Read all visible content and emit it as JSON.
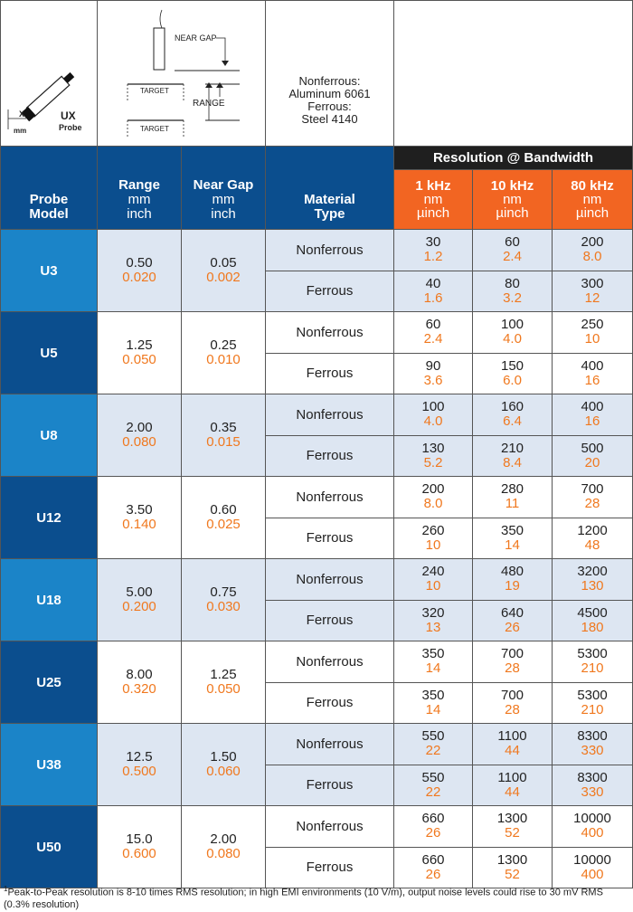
{
  "header": {
    "probe_label": "UX",
    "probe_sub": "Probe",
    "x_label": "X",
    "mm_label": "mm",
    "near_gap_label": "NEAR GAP",
    "range_label": "RANGE",
    "target_label_1": "TARGET",
    "target_label_2": "TARGET",
    "material_line1": "Nonferrous:",
    "material_line2": "Aluminum 6061",
    "material_line3": "Ferrous:",
    "material_line4": "Steel 4140"
  },
  "columns": {
    "probe_model_1": "Probe",
    "probe_model_2": "Model",
    "range_title": "Range",
    "range_unit1": "mm",
    "range_unit2": "inch",
    "neargap_title": "Near Gap",
    "neargap_unit1": "mm",
    "neargap_unit2": "inch",
    "material_1": "Material",
    "material_2": "Type",
    "resolution_title": "Resolution @ Bandwidth",
    "freqs": [
      {
        "f": "1 kHz",
        "u1": "nm",
        "u2": "µinch"
      },
      {
        "f": "10 kHz",
        "u1": "nm",
        "u2": "µinch"
      },
      {
        "f": "80 kHz",
        "u1": "nm",
        "u2": "µinch"
      }
    ]
  },
  "rows": [
    {
      "model": "U3",
      "range_mm": "0.50",
      "range_in": "0.020",
      "gap_mm": "0.05",
      "gap_in": "0.002",
      "nf": {
        "type": "Nonferrous",
        "r": [
          [
            "30",
            "1.2"
          ],
          [
            "60",
            "2.4"
          ],
          [
            "200",
            "8.0"
          ]
        ]
      },
      "fe": {
        "type": "Ferrous",
        "r": [
          [
            "40",
            "1.6"
          ],
          [
            "80",
            "3.2"
          ],
          [
            "300",
            "12"
          ]
        ]
      }
    },
    {
      "model": "U5",
      "range_mm": "1.25",
      "range_in": "0.050",
      "gap_mm": "0.25",
      "gap_in": "0.010",
      "nf": {
        "type": "Nonferrous",
        "r": [
          [
            "60",
            "2.4"
          ],
          [
            "100",
            "4.0"
          ],
          [
            "250",
            "10"
          ]
        ]
      },
      "fe": {
        "type": "Ferrous",
        "r": [
          [
            "90",
            "3.6"
          ],
          [
            "150",
            "6.0"
          ],
          [
            "400",
            "16"
          ]
        ]
      }
    },
    {
      "model": "U8",
      "range_mm": "2.00",
      "range_in": "0.080",
      "gap_mm": "0.35",
      "gap_in": "0.015",
      "nf": {
        "type": "Nonferrous",
        "r": [
          [
            "100",
            "4.0"
          ],
          [
            "160",
            "6.4"
          ],
          [
            "400",
            "16"
          ]
        ]
      },
      "fe": {
        "type": "Ferrous",
        "r": [
          [
            "130",
            "5.2"
          ],
          [
            "210",
            "8.4"
          ],
          [
            "500",
            "20"
          ]
        ]
      }
    },
    {
      "model": "U12",
      "range_mm": "3.50",
      "range_in": "0.140",
      "gap_mm": "0.60",
      "gap_in": "0.025",
      "nf": {
        "type": "Nonferrous",
        "r": [
          [
            "200",
            "8.0"
          ],
          [
            "280",
            "11"
          ],
          [
            "700",
            "28"
          ]
        ]
      },
      "fe": {
        "type": "Ferrous",
        "r": [
          [
            "260",
            "10"
          ],
          [
            "350",
            "14"
          ],
          [
            "1200",
            "48"
          ]
        ]
      }
    },
    {
      "model": "U18",
      "range_mm": "5.00",
      "range_in": "0.200",
      "gap_mm": "0.75",
      "gap_in": "0.030",
      "nf": {
        "type": "Nonferrous",
        "r": [
          [
            "240",
            "10"
          ],
          [
            "480",
            "19"
          ],
          [
            "3200",
            "130"
          ]
        ]
      },
      "fe": {
        "type": "Ferrous",
        "r": [
          [
            "320",
            "13"
          ],
          [
            "640",
            "26"
          ],
          [
            "4500",
            "180"
          ]
        ]
      }
    },
    {
      "model": "U25",
      "range_mm": "8.00",
      "range_in": "0.320",
      "gap_mm": "1.25",
      "gap_in": "0.050",
      "nf": {
        "type": "Nonferrous",
        "r": [
          [
            "350",
            "14"
          ],
          [
            "700",
            "28"
          ],
          [
            "5300",
            "210"
          ]
        ]
      },
      "fe": {
        "type": "Ferrous",
        "r": [
          [
            "350",
            "14"
          ],
          [
            "700",
            "28"
          ],
          [
            "5300",
            "210"
          ]
        ]
      }
    },
    {
      "model": "U38",
      "range_mm": "12.5",
      "range_in": "0.500",
      "gap_mm": "1.50",
      "gap_in": "0.060",
      "nf": {
        "type": "Nonferrous",
        "r": [
          [
            "550",
            "22"
          ],
          [
            "1100",
            "44"
          ],
          [
            "8300",
            "330"
          ]
        ]
      },
      "fe": {
        "type": "Ferrous",
        "r": [
          [
            "550",
            "22"
          ],
          [
            "1100",
            "44"
          ],
          [
            "8300",
            "330"
          ]
        ]
      }
    },
    {
      "model": "U50",
      "range_mm": "15.0",
      "range_in": "0.600",
      "gap_mm": "2.00",
      "gap_in": "0.080",
      "nf": {
        "type": "Nonferrous",
        "r": [
          [
            "660",
            "26"
          ],
          [
            "1300",
            "52"
          ],
          [
            "10000",
            "400"
          ]
        ]
      },
      "fe": {
        "type": "Ferrous",
        "r": [
          [
            "660",
            "26"
          ],
          [
            "1300",
            "52"
          ],
          [
            "10000",
            "400"
          ]
        ]
      }
    }
  ],
  "footnote": {
    "sup": "1",
    "text": "Peak-to-Peak resolution is 8-10 times RMS resolution; in high EMI environments (10 V/m), output noise levels could rise to 30 mV RMS (0.3% resolution)"
  },
  "colors": {
    "dark_blue": "#0b4e8e",
    "light_blue": "#1b84c8",
    "orange": "#f26522",
    "row_tint": "#dde6f2"
  }
}
